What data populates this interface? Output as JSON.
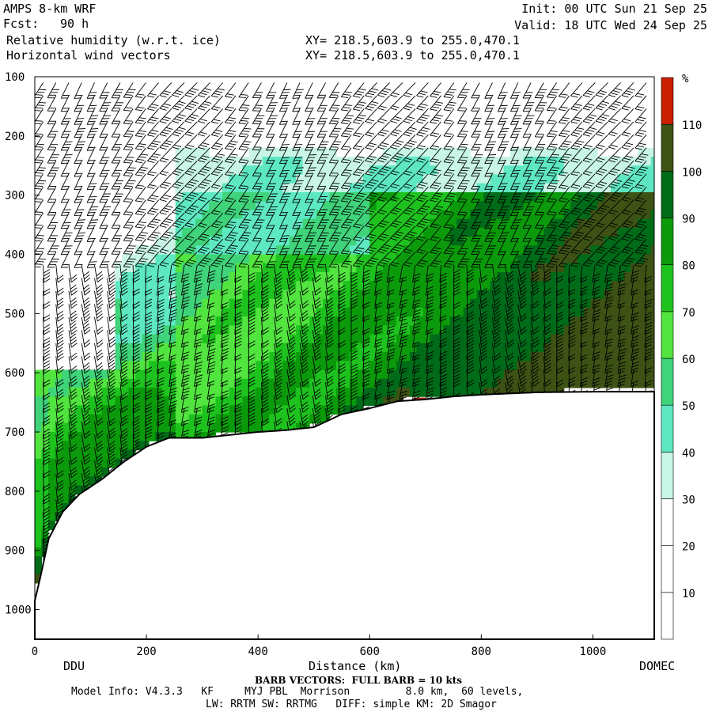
{
  "header": {
    "model": "AMPS 8-km WRF",
    "fcst_label": "Fcst:",
    "fcst_value": "90 h",
    "field1": "Relative humidity (w.r.t. ice)",
    "field2": "Horizontal wind vectors",
    "init": "Init: 00 UTC Sun 21 Sep 25",
    "valid": "Valid: 18 UTC Wed 24 Sep 25",
    "xy1": "XY= 218.5,603.9 to 255.0,470.1",
    "xy2": "XY= 218.5,603.9 to 255.0,470.1"
  },
  "footer": {
    "barb_note": "BARB VECTORS:  FULL BARB = 10 kts",
    "model_info": "Model Info: V4.3.3   KF     MYJ PBL  Morrison         8.0 km,  60 levels,",
    "physics": "LW: RRTM SW: RRTMG   DIFF: simple KM: 2D Smagor"
  },
  "chart_data": {
    "type": "heatmap",
    "xlabel": "Distance (km)",
    "ylabel": "",
    "xlim": [
      0,
      1110
    ],
    "ylim": [
      1050,
      100
    ],
    "x_ticks": [
      0,
      200,
      400,
      600,
      800,
      1000
    ],
    "y_ticks": [
      100,
      200,
      300,
      400,
      500,
      600,
      700,
      800,
      900,
      1000
    ],
    "endpoints": {
      "left": "DDU",
      "right": "DOMEC"
    },
    "colorbar": {
      "unit": "%",
      "levels": [
        10,
        20,
        30,
        40,
        50,
        60,
        70,
        80,
        90,
        100,
        110
      ],
      "colors": [
        "#ffffff",
        "#ffffff",
        "#ffffff",
        "#c8f5e6",
        "#5ee8c2",
        "#3fd37a",
        "#52e43f",
        "#1ec21e",
        "#0b9a0b",
        "#006b18",
        "#3d5214",
        "#c82000"
      ]
    },
    "terrain_pressure": {
      "x": [
        0,
        10,
        25,
        50,
        80,
        120,
        160,
        200,
        240,
        300,
        350,
        400,
        450,
        500,
        550,
        600,
        650,
        700,
        750,
        800,
        850,
        900,
        1000,
        1110
      ],
      "p": [
        985,
        945,
        880,
        835,
        805,
        780,
        750,
        725,
        710,
        710,
        705,
        700,
        697,
        692,
        670,
        660,
        648,
        645,
        640,
        637,
        635,
        633,
        632,
        632
      ]
    },
    "surface_point_red": {
      "x": 690,
      "p": 646
    }
  }
}
